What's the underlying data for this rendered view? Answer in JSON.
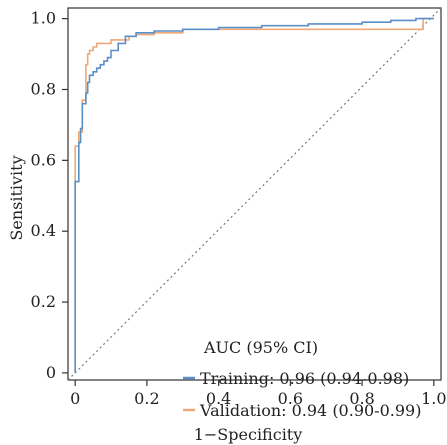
{
  "chart_data": {
    "type": "line",
    "xlabel": "1−Specificity",
    "ylabel": "Sensitivity",
    "xlim": [
      -0.02,
      1.02
    ],
    "ylim": [
      -0.02,
      1.03
    ],
    "x_ticks": [
      0,
      0.2,
      0.4,
      0.6,
      0.8,
      1.0
    ],
    "x_tick_labels": [
      "0",
      "0.2",
      "0.4",
      "0.6",
      "0.8",
      "1.0"
    ],
    "y_ticks": [
      0,
      0.2,
      0.4,
      0.6,
      0.8,
      1.0
    ],
    "y_tick_labels": [
      "0",
      "0.2",
      "0.4",
      "0.6",
      "0.8",
      "1.0"
    ],
    "grid": false,
    "legend": {
      "title": "AUC (95% CI)",
      "position": "bottom-right",
      "entries": [
        "Training: 0.96 (0.94-0.98)",
        "Validation: 0.94 (0.90-0.99)"
      ]
    },
    "reference_line": {
      "x": [
        -0.02,
        1.02
      ],
      "y": [
        -0.02,
        1.03
      ],
      "color": "#7a7a7a",
      "style": "dotted"
    },
    "series": [
      {
        "color": "#5b8fc7",
        "x": [
          0,
          0,
          0.01,
          0.01,
          0.015,
          0.015,
          0.02,
          0.02,
          0.03,
          0.03,
          0.035,
          0.035,
          0.04,
          0.04,
          0.05,
          0.05,
          0.06,
          0.06,
          0.07,
          0.07,
          0.08,
          0.08,
          0.09,
          0.09,
          0.1,
          0.1,
          0.12,
          0.12,
          0.14,
          0.14,
          0.17,
          0.17,
          0.22,
          0.22,
          0.3,
          0.3,
          0.4,
          0.4,
          0.52,
          0.52,
          0.65,
          0.65,
          0.8,
          0.8,
          0.88,
          0.88,
          0.95,
          0.95,
          1.0
        ],
        "y": [
          0,
          0.54,
          0.54,
          0.65,
          0.65,
          0.69,
          0.69,
          0.76,
          0.76,
          0.79,
          0.79,
          0.82,
          0.82,
          0.84,
          0.84,
          0.85,
          0.85,
          0.86,
          0.86,
          0.87,
          0.87,
          0.88,
          0.88,
          0.89,
          0.89,
          0.91,
          0.91,
          0.93,
          0.93,
          0.95,
          0.95,
          0.96,
          0.96,
          0.965,
          0.965,
          0.97,
          0.97,
          0.975,
          0.975,
          0.98,
          0.98,
          0.985,
          0.985,
          0.99,
          0.99,
          0.995,
          0.995,
          1.0,
          1.0
        ]
      },
      {
        "color": "#f0a878",
        "x": [
          0,
          0,
          0.01,
          0.01,
          0.02,
          0.02,
          0.03,
          0.03,
          0.035,
          0.035,
          0.04,
          0.04,
          0.05,
          0.05,
          0.06,
          0.06,
          0.1,
          0.1,
          0.15,
          0.15,
          0.17,
          0.17,
          0.22,
          0.22,
          0.3,
          0.3,
          0.6,
          0.6,
          0.97,
          0.97,
          1.0
        ],
        "y": [
          0,
          0.64,
          0.64,
          0.68,
          0.68,
          0.77,
          0.77,
          0.87,
          0.87,
          0.9,
          0.9,
          0.91,
          0.91,
          0.92,
          0.92,
          0.93,
          0.93,
          0.94,
          0.94,
          0.95,
          0.95,
          0.955,
          0.955,
          0.96,
          0.96,
          0.97,
          0.97,
          0.97,
          0.97,
          1.0,
          1.0
        ]
      }
    ]
  }
}
